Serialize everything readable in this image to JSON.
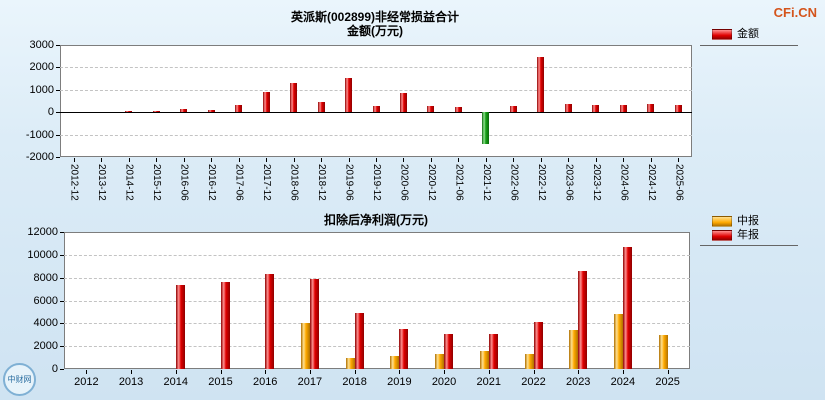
{
  "watermark": "CFi.CN",
  "logo": {
    "text": "中财网"
  },
  "chart_data": [
    {
      "type": "bar",
      "title": "英派斯(002899)非经常损益合计",
      "subtitle": "金额(万元)",
      "categories": [
        "2012-12",
        "2013-12",
        "2014-12",
        "2015-12",
        "2016-06",
        "2016-12",
        "2017-06",
        "2017-12",
        "2018-06",
        "2018-12",
        "2019-06",
        "2019-12",
        "2020-06",
        "2020-12",
        "2021-06",
        "2021-12",
        "2022-06",
        "2022-12",
        "2023-06",
        "2023-12",
        "2024-06",
        "2024-12",
        "2025-06"
      ],
      "series": [
        {
          "name": "金额",
          "color": "#e00000",
          "color_light": "#ff9090",
          "color_dark": "#8f0000",
          "values": [
            0,
            0,
            60,
            40,
            150,
            110,
            300,
            900,
            1320,
            470,
            1520,
            260,
            850,
            260,
            240,
            -1400,
            280,
            2450,
            380,
            310,
            320,
            380,
            300
          ]
        }
      ],
      "negative": {
        "color": "#18a018",
        "color_light": "#90e090",
        "color_dark": "#0a6a0a"
      },
      "ylim": [
        -2000,
        3000
      ],
      "ytick_step": 1000,
      "grid": "dashed",
      "legend_position": "top-right"
    },
    {
      "type": "bar",
      "title": "扣除后净利润(万元)",
      "categories": [
        "2012",
        "2013",
        "2014",
        "2015",
        "2016",
        "2017",
        "2018",
        "2019",
        "2020",
        "2021",
        "2022",
        "2023",
        "2024",
        "2025"
      ],
      "series": [
        {
          "name": "中报",
          "color": "#ffaa00",
          "color_light": "#ffe090",
          "color_dark": "#b07000",
          "values": [
            0,
            0,
            0,
            0,
            0,
            4000,
            1000,
            1150,
            1300,
            1600,
            1300,
            3400,
            4800,
            3000
          ]
        },
        {
          "name": "年报",
          "color": "#e00000",
          "color_light": "#ff9090",
          "color_dark": "#8f0000",
          "values": [
            0,
            0,
            7400,
            7650,
            8300,
            7900,
            4900,
            3500,
            3050,
            3100,
            4100,
            8550,
            10650,
            0
          ]
        }
      ],
      "ylim": [
        0,
        12000
      ],
      "ytick_step": 2000,
      "grid": "dashed",
      "legend_position": "right"
    }
  ]
}
